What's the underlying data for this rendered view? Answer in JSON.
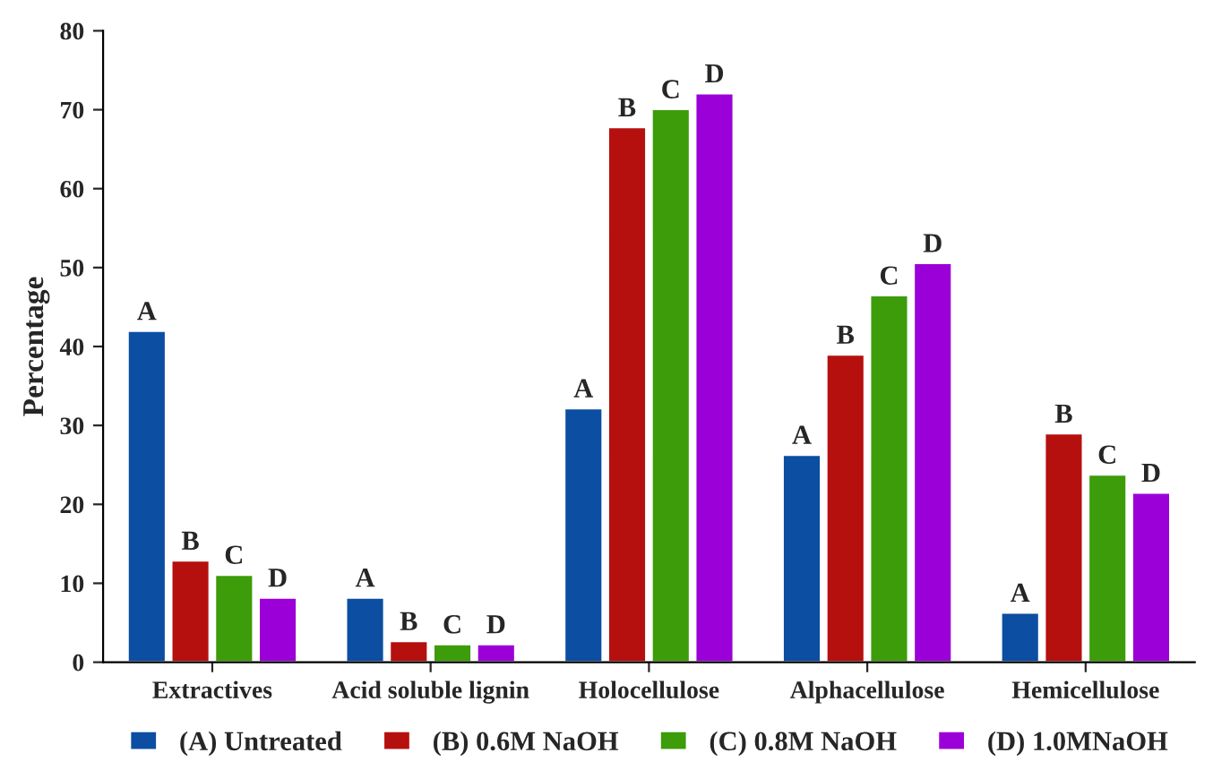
{
  "chart_data": {
    "type": "bar",
    "ylabel": "Percentage",
    "categories": [
      "Extractives",
      "Acid soluble lignin",
      "Holocellulose",
      "Alphacellulose",
      "Hemicellulose"
    ],
    "series": [
      {
        "name": "(A) Untreated",
        "color": "#0b4ea2",
        "values": [
          42,
          8.2,
          32.2,
          26.3,
          6.3
        ],
        "value_labels": [
          "A",
          "A",
          "A",
          "A",
          "A"
        ]
      },
      {
        "name": "(B) 0.6M NaOH",
        "color": "#b5100e",
        "values": [
          12.9,
          2.7,
          67.8,
          39,
          29
        ],
        "value_labels": [
          "B",
          "B",
          "B",
          "B",
          "B"
        ]
      },
      {
        "name": "(C) 0.8M NaOH",
        "color": "#3c9c0a",
        "values": [
          11.1,
          2.3,
          70.1,
          46.5,
          23.8
        ],
        "value_labels": [
          "C",
          "C",
          "C",
          "C",
          "C"
        ]
      },
      {
        "name": "(D) 1.0MNaOH",
        "color": "#9b00d8",
        "values": [
          8.2,
          2.3,
          72.1,
          50.6,
          21.5
        ],
        "value_labels": [
          "D",
          "D",
          "D",
          "D",
          "D"
        ]
      }
    ],
    "ylim": [
      0,
      80
    ],
    "yticks": [
      0,
      10,
      20,
      30,
      40,
      50,
      60,
      70,
      80
    ],
    "grid": false,
    "legend": "bottom"
  }
}
